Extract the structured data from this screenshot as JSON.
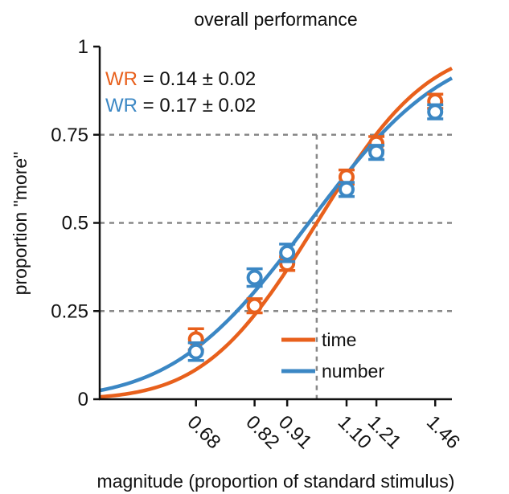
{
  "chart_data": {
    "type": "line",
    "title": "overall performance",
    "xlabel": "magnitude (proportion of standard stimulus)",
    "ylabel": "proportion \"more\"",
    "xlim": [
      0.5,
      1.54
    ],
    "ylim": [
      0,
      1
    ],
    "x_ticks": [
      0.68,
      0.82,
      0.91,
      1.1,
      1.21,
      1.46
    ],
    "x_tick_labels": [
      "0.68",
      "0.82",
      "0.91",
      "1.10",
      "1.21",
      "1.46"
    ],
    "y_ticks": [
      0,
      0.25,
      0.5,
      0.75,
      1
    ],
    "y_tick_labels": [
      "0",
      "0.25",
      "0.5",
      "0.75",
      "1"
    ],
    "reference_lines": {
      "horizontal": [
        0.25,
        0.5,
        0.75
      ],
      "vertical": [
        1.0
      ]
    },
    "legend_position": "bottom-right",
    "annotations": [
      {
        "label": "WR",
        "text": " = 0.14 ± 0.02",
        "color": "#e8601c"
      },
      {
        "label": "WR",
        "text": " = 0.17 ± 0.02",
        "color": "#3b87c4"
      }
    ],
    "series": [
      {
        "name": "time",
        "color": "#e8601c",
        "points": [
          {
            "x": 0.68,
            "y": 0.17,
            "err": 0.03
          },
          {
            "x": 0.82,
            "y": 0.265,
            "err": 0.02
          },
          {
            "x": 0.91,
            "y": 0.385,
            "err": 0.02
          },
          {
            "x": 1.1,
            "y": 0.63,
            "err": 0.02
          },
          {
            "x": 1.21,
            "y": 0.725,
            "err": 0.02
          },
          {
            "x": 1.46,
            "y": 0.845,
            "err": 0.02
          }
        ],
        "fit": {
          "mu": 1.0,
          "wr": 0.14
        }
      },
      {
        "name": "number",
        "color": "#3b87c4",
        "points": [
          {
            "x": 0.68,
            "y": 0.135,
            "err": 0.025
          },
          {
            "x": 0.82,
            "y": 0.345,
            "err": 0.025
          },
          {
            "x": 0.91,
            "y": 0.415,
            "err": 0.025
          },
          {
            "x": 1.1,
            "y": 0.595,
            "err": 0.02
          },
          {
            "x": 1.21,
            "y": 0.7,
            "err": 0.02
          },
          {
            "x": 1.46,
            "y": 0.815,
            "err": 0.02
          }
        ],
        "fit": {
          "mu": 0.975,
          "wr": 0.17
        }
      }
    ]
  }
}
